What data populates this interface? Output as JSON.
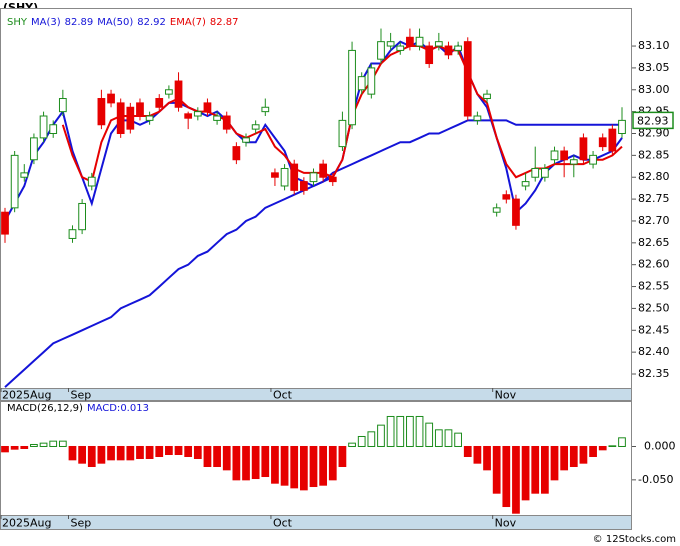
{
  "chart_data": [
    {
      "type": "candlestick",
      "title": "(SHY)",
      "label": "SHY",
      "categories": [
        "2025Aug",
        null,
        null,
        null,
        null,
        null,
        null,
        "Sep",
        null,
        null,
        null,
        null,
        null,
        null,
        null,
        null,
        null,
        null,
        null,
        null,
        null,
        null,
        null,
        null,
        null,
        null,
        null,
        null,
        "Oct",
        null,
        null,
        null,
        null,
        null,
        null,
        null,
        null,
        null,
        null,
        null,
        null,
        null,
        null,
        null,
        null,
        null,
        null,
        null,
        null,
        null,
        null,
        "Nov",
        null,
        null,
        null,
        null,
        null,
        null,
        null,
        null,
        null,
        null,
        null,
        null,
        null
      ],
      "open": [
        82.72,
        82.73,
        82.8,
        82.84,
        82.89,
        82.9,
        82.95,
        82.66,
        82.68,
        82.78,
        82.98,
        82.99,
        82.97,
        82.96,
        82.97,
        82.93,
        82.98,
        82.99,
        83.02,
        82.945,
        82.94,
        82.97,
        82.93,
        82.94,
        82.87,
        82.88,
        82.91,
        82.95,
        82.81,
        82.78,
        82.83,
        82.79,
        82.79,
        82.83,
        82.8,
        82.87,
        82.92,
        83.0,
        82.99,
        83.07,
        83.1,
        83.09,
        83.12,
        83.1,
        83.1,
        83.1,
        83.1,
        83.09,
        83.11,
        82.93,
        82.98,
        82.72,
        82.76,
        82.75,
        82.78,
        82.8,
        82.8,
        82.84,
        82.86,
        82.83,
        82.89,
        82.83,
        82.89,
        82.91,
        82.9
      ],
      "high": [
        82.73,
        82.86,
        82.83,
        82.9,
        82.95,
        82.93,
        83.0,
        82.69,
        82.75,
        82.81,
        83.0,
        83.0,
        82.98,
        82.97,
        82.98,
        82.95,
        82.99,
        83.01,
        83.04,
        82.95,
        82.96,
        82.98,
        82.95,
        82.95,
        82.88,
        82.9,
        82.93,
        82.98,
        82.82,
        82.83,
        82.84,
        82.8,
        82.82,
        82.84,
        82.81,
        82.95,
        83.11,
        83.04,
        83.06,
        83.14,
        83.13,
        83.11,
        83.14,
        83.14,
        83.11,
        83.13,
        83.11,
        83.11,
        83.12,
        82.95,
        83.0,
        82.74,
        82.77,
        82.76,
        82.81,
        82.87,
        82.83,
        82.87,
        82.87,
        82.85,
        82.9,
        82.86,
        82.9,
        82.92,
        82.96
      ],
      "low": [
        82.65,
        82.72,
        82.79,
        82.83,
        82.88,
        82.89,
        82.94,
        82.65,
        82.67,
        82.77,
        82.91,
        82.96,
        82.89,
        82.9,
        82.93,
        82.92,
        82.95,
        82.98,
        82.95,
        82.91,
        82.93,
        82.94,
        82.92,
        82.9,
        82.83,
        82.87,
        82.9,
        82.94,
        82.78,
        82.77,
        82.76,
        82.76,
        82.78,
        82.79,
        82.78,
        82.86,
        82.91,
        82.99,
        82.98,
        83.06,
        83.09,
        83.08,
        83.09,
        83.09,
        83.05,
        83.09,
        83.07,
        83.08,
        82.93,
        82.92,
        82.97,
        82.71,
        82.74,
        82.68,
        82.77,
        82.79,
        82.79,
        82.83,
        82.8,
        82.8,
        82.83,
        82.82,
        82.86,
        82.85,
        82.89
      ],
      "close": [
        82.67,
        82.85,
        82.81,
        82.89,
        82.94,
        82.92,
        82.98,
        82.68,
        82.74,
        82.8,
        82.92,
        82.97,
        82.9,
        82.91,
        82.94,
        82.94,
        82.96,
        83.0,
        82.96,
        82.935,
        82.95,
        82.95,
        82.94,
        82.91,
        82.84,
        82.89,
        82.92,
        82.96,
        82.8,
        82.82,
        82.77,
        82.77,
        82.81,
        82.8,
        82.79,
        82.93,
        83.09,
        83.03,
        83.05,
        83.11,
        83.11,
        83.1,
        83.1,
        83.12,
        83.06,
        83.11,
        83.08,
        83.1,
        82.94,
        82.94,
        82.99,
        82.73,
        82.75,
        82.69,
        82.79,
        82.82,
        82.82,
        82.86,
        82.84,
        82.84,
        82.84,
        82.85,
        82.87,
        82.86,
        82.93
      ],
      "up_color": "#1c8c1c",
      "down_color": "#e60000",
      "label_color": "#1c8c1c",
      "series": [
        {
          "name": "MA(3)",
          "legend_value": 82.89,
          "color": "#1414d8",
          "values": [
            82.7,
            82.74,
            82.78,
            82.85,
            82.88,
            82.92,
            82.95,
            82.86,
            82.8,
            82.74,
            82.82,
            82.9,
            82.93,
            82.93,
            82.92,
            82.93,
            82.95,
            82.97,
            82.97,
            82.96,
            82.95,
            82.94,
            82.95,
            82.93,
            82.9,
            82.88,
            82.88,
            82.92,
            82.89,
            82.86,
            82.8,
            82.79,
            82.78,
            82.79,
            82.8,
            82.84,
            82.94,
            83.02,
            83.06,
            83.06,
            83.09,
            83.11,
            83.1,
            83.11,
            83.09,
            83.1,
            83.08,
            83.1,
            83.04,
            82.99,
            82.96,
            82.89,
            82.82,
            82.72,
            82.74,
            82.77,
            82.81,
            82.83,
            82.84,
            82.85,
            82.84,
            82.84,
            82.85,
            82.86,
            82.89
          ]
        },
        {
          "name": "MA(50)",
          "legend_value": 82.92,
          "color": "#1414d8",
          "values": [
            82.32,
            82.34,
            82.36,
            82.38,
            82.4,
            82.42,
            82.43,
            82.44,
            82.45,
            82.46,
            82.47,
            82.48,
            82.5,
            82.51,
            82.52,
            82.53,
            82.55,
            82.57,
            82.59,
            82.6,
            82.62,
            82.63,
            82.65,
            82.67,
            82.68,
            82.7,
            82.71,
            82.73,
            82.74,
            82.75,
            82.76,
            82.77,
            82.78,
            82.79,
            82.81,
            82.82,
            82.83,
            82.84,
            82.85,
            82.86,
            82.87,
            82.88,
            82.88,
            82.89,
            82.9,
            82.9,
            82.91,
            82.92,
            82.93,
            82.93,
            82.93,
            82.93,
            82.93,
            82.92,
            82.92,
            82.92,
            82.92,
            82.92,
            82.92,
            82.92,
            82.92,
            82.92,
            82.92,
            82.92,
            82.92
          ]
        },
        {
          "name": "EMA(7)",
          "legend_value": 82.87,
          "color": "#e60000",
          "values": [
            null,
            null,
            null,
            null,
            null,
            null,
            82.92,
            82.85,
            82.8,
            82.79,
            82.88,
            82.93,
            82.94,
            82.94,
            82.94,
            82.94,
            82.95,
            82.97,
            82.98,
            82.96,
            82.95,
            82.95,
            82.94,
            82.93,
            82.9,
            82.89,
            82.9,
            82.91,
            82.87,
            82.85,
            82.82,
            82.81,
            82.81,
            82.81,
            82.8,
            82.84,
            82.94,
            82.99,
            83.02,
            83.06,
            83.08,
            83.09,
            83.1,
            83.1,
            83.09,
            83.1,
            83.09,
            83.09,
            83.04,
            82.99,
            82.97,
            82.89,
            82.83,
            82.8,
            82.81,
            82.82,
            82.82,
            82.83,
            82.83,
            82.83,
            82.83,
            82.84,
            82.84,
            82.85,
            82.87
          ]
        }
      ],
      "last_price": 82.93,
      "ylim": [
        82.318,
        83.187
      ],
      "yticks": [
        {
          "value": 82.35,
          "label": "82.35"
        },
        {
          "value": 82.4,
          "label": "82.40"
        },
        {
          "value": 82.45,
          "label": "82.45"
        },
        {
          "value": 82.5,
          "label": "82.50"
        },
        {
          "value": 82.55,
          "label": "82.55"
        },
        {
          "value": 82.6,
          "label": "82.60"
        },
        {
          "value": 82.65,
          "label": "82.65"
        },
        {
          "value": 82.7,
          "label": "82.70"
        },
        {
          "value": 82.75,
          "label": "82.75"
        },
        {
          "value": 82.8,
          "label": "82.80"
        },
        {
          "value": 82.85,
          "label": "82.85"
        },
        {
          "value": 82.9,
          "label": "82.90"
        },
        {
          "value": 82.95,
          "label": "82.95"
        },
        {
          "value": 83.0,
          "label": "83.00"
        },
        {
          "value": 83.05,
          "label": "83.05"
        },
        {
          "value": 83.1,
          "label": "83.10"
        }
      ]
    },
    {
      "type": "bar",
      "title": "MACD(26,12,9)",
      "categories": [
        "2025Aug",
        null,
        null,
        null,
        null,
        null,
        null,
        "Sep",
        null,
        null,
        null,
        null,
        null,
        null,
        null,
        null,
        null,
        null,
        null,
        null,
        null,
        null,
        null,
        null,
        null,
        null,
        null,
        null,
        "Oct",
        null,
        null,
        null,
        null,
        null,
        null,
        null,
        null,
        null,
        null,
        null,
        null,
        null,
        null,
        null,
        null,
        null,
        null,
        null,
        null,
        null,
        null,
        "Nov",
        null,
        null,
        null,
        null,
        null,
        null,
        null,
        null,
        null,
        null,
        null,
        null,
        null
      ],
      "series": [
        {
          "name": "MACD:",
          "legend_value": 0.013,
          "color": "#1414d8",
          "values": [
            -0.008,
            -0.004,
            -0.003,
            0.003,
            0.005,
            0.008,
            0.008,
            -0.02,
            -0.025,
            -0.03,
            -0.025,
            -0.02,
            -0.02,
            -0.02,
            -0.018,
            -0.018,
            -0.015,
            -0.012,
            -0.012,
            -0.015,
            -0.018,
            -0.03,
            -0.03,
            -0.035,
            -0.05,
            -0.05,
            -0.048,
            -0.045,
            -0.055,
            -0.058,
            -0.062,
            -0.065,
            -0.06,
            -0.058,
            -0.05,
            -0.03,
            0.005,
            0.015,
            0.022,
            0.032,
            0.045,
            0.045,
            0.045,
            0.045,
            0.035,
            0.025,
            0.025,
            0.02,
            -0.015,
            -0.025,
            -0.035,
            -0.07,
            -0.09,
            -0.1,
            -0.08,
            -0.07,
            -0.07,
            -0.05,
            -0.035,
            -0.03,
            -0.025,
            -0.015,
            -0.005,
            0.001,
            0.013
          ]
        }
      ],
      "up_color": "#1c8c1c",
      "down_color": "#e60000",
      "ylim": [
        -0.1027,
        0.0682
      ],
      "yticks": [
        {
          "value": 0,
          "label": "0.000"
        },
        {
          "value": -0.05,
          "label": "-0.050"
        }
      ]
    }
  ],
  "footer": "© 12Stocks.com"
}
